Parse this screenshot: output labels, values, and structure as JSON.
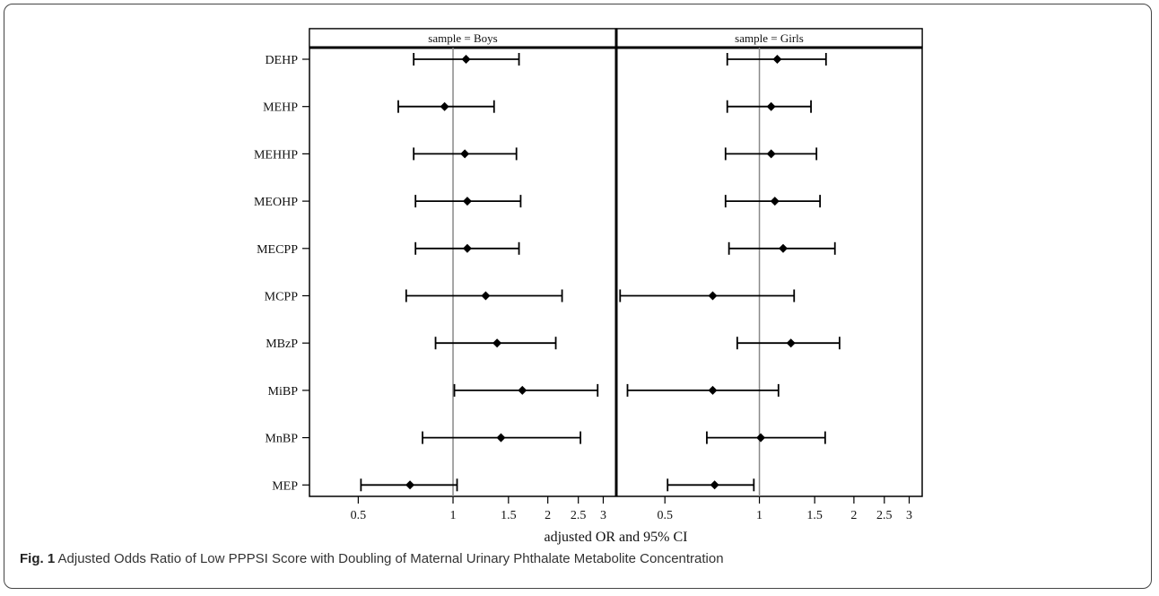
{
  "caption": {
    "label": "Fig. 1",
    "text": "Adjusted Odds Ratio of Low PPPSI Score with Doubling of Maternal Urinary Phthalate Metabolite Concentration"
  },
  "chart_data": {
    "type": "forest",
    "xlabel": "adjusted OR and 95% CI",
    "x_scale": "log",
    "xlim": [
      0.35,
      3.3
    ],
    "reference_line": 1,
    "x_ticks": [
      0.5,
      1,
      1.5,
      2,
      2.5,
      3
    ],
    "x_tick_labels": [
      "0.5",
      "1",
      "1.5",
      "2",
      "2.5",
      "3"
    ],
    "categories": [
      "DEHP",
      "MEHP",
      "MEHHP",
      "MEOHP",
      "MECPP",
      "MCPP",
      "MBzP",
      "MiBP",
      "MnBP",
      "MEP"
    ],
    "panels": [
      {
        "title": "sample = Boys",
        "or": [
          1.1,
          0.94,
          1.09,
          1.11,
          1.11,
          1.27,
          1.38,
          1.66,
          1.42,
          0.73
        ],
        "lower": [
          0.75,
          0.67,
          0.75,
          0.76,
          0.76,
          0.71,
          0.88,
          1.01,
          0.8,
          0.51
        ],
        "upper": [
          1.62,
          1.35,
          1.59,
          1.64,
          1.62,
          2.22,
          2.12,
          2.88,
          2.54,
          1.03
        ]
      },
      {
        "title": "sample = Girls",
        "or": [
          1.14,
          1.09,
          1.09,
          1.12,
          1.19,
          0.71,
          1.26,
          0.71,
          1.01,
          0.72
        ],
        "lower": [
          0.79,
          0.79,
          0.78,
          0.78,
          0.8,
          0.36,
          0.85,
          0.38,
          0.68,
          0.51
        ],
        "upper": [
          1.63,
          1.46,
          1.52,
          1.56,
          1.74,
          1.29,
          1.8,
          1.15,
          1.62,
          0.96
        ]
      }
    ]
  }
}
